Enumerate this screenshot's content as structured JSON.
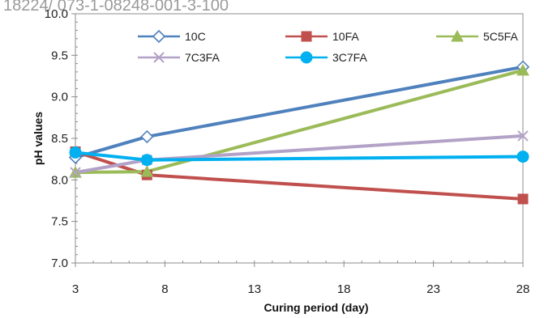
{
  "header_text": "18224/ 073-1-08248-001-3-100",
  "chart_data": {
    "type": "line",
    "title": "",
    "xlabel": "Curing period (day)",
    "ylabel": "pH values",
    "xlim": [
      3,
      28
    ],
    "ylim": [
      7.0,
      10.0
    ],
    "x_ticks": [
      3,
      8,
      13,
      18,
      23,
      28
    ],
    "y_ticks": [
      "7.0",
      "7.5",
      "8.0",
      "8.5",
      "9.0",
      "9.5",
      "10.0"
    ],
    "grid": "none",
    "legend_position": "top",
    "series": [
      {
        "name": "10C",
        "color": "#4f81bd",
        "marker": "diamond-open",
        "x": [
          3,
          7,
          28
        ],
        "y": [
          8.27,
          8.52,
          9.36
        ]
      },
      {
        "name": "10FA",
        "color": "#c0504d",
        "marker": "square",
        "x": [
          3,
          7,
          28
        ],
        "y": [
          8.34,
          8.06,
          7.77
        ]
      },
      {
        "name": "5C5FA",
        "color": "#9bbb59",
        "marker": "triangle",
        "x": [
          3,
          7,
          28
        ],
        "y": [
          8.09,
          8.1,
          9.32
        ]
      },
      {
        "name": "7C3FA",
        "color": "#b3a2c7",
        "marker": "x",
        "x": [
          3,
          7,
          28
        ],
        "y": [
          8.09,
          8.24,
          8.53
        ]
      },
      {
        "name": "3C7FA",
        "color": "#00b0f0",
        "marker": "circle",
        "x": [
          3,
          7,
          28
        ],
        "y": [
          8.33,
          8.24,
          8.28
        ]
      }
    ]
  }
}
